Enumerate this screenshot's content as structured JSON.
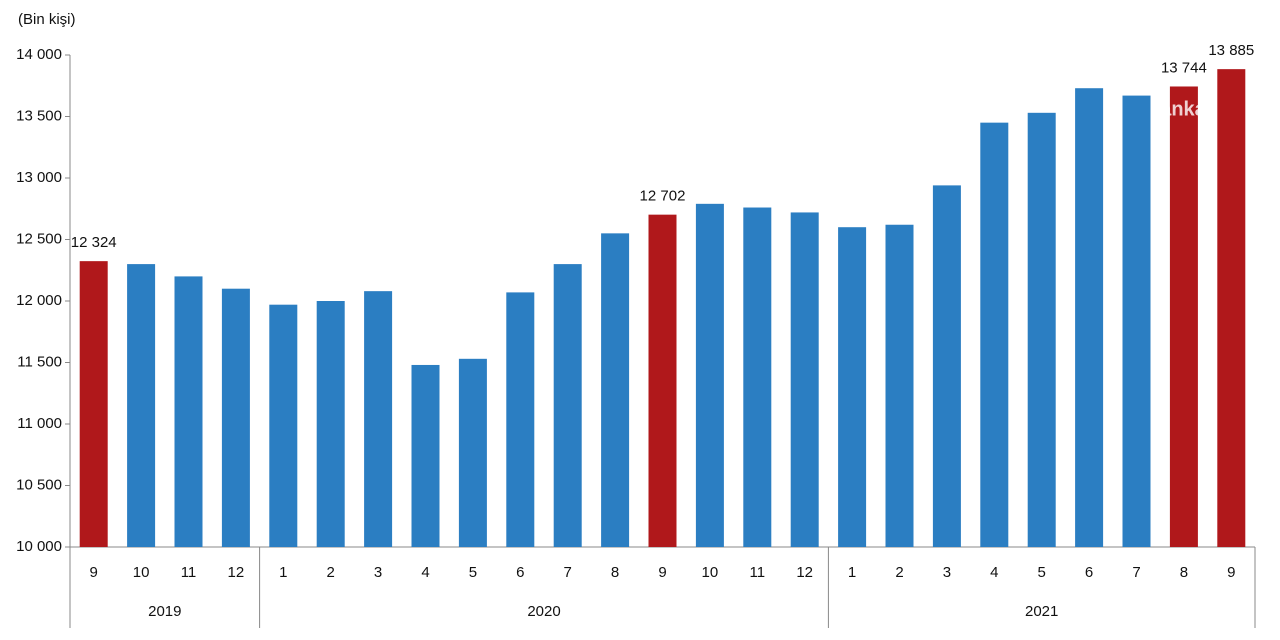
{
  "chart_data": {
    "type": "bar",
    "y_label": "(Bin kişi)",
    "watermark": "anka",
    "groups": [
      {
        "label": "2019",
        "categories": [
          "9",
          "10",
          "11",
          "12"
        ]
      },
      {
        "label": "2020",
        "categories": [
          "1",
          "2",
          "3",
          "4",
          "5",
          "6",
          "7",
          "8",
          "9",
          "10",
          "11",
          "12"
        ]
      },
      {
        "label": "2021",
        "categories": [
          "1",
          "2",
          "3",
          "4",
          "5",
          "6",
          "7",
          "8",
          "9"
        ]
      }
    ],
    "values": [
      12324,
      12300,
      12200,
      12100,
      11970,
      12000,
      12080,
      11480,
      11530,
      12070,
      12300,
      12550,
      12702,
      12790,
      12760,
      12720,
      12600,
      12620,
      12940,
      13450,
      13530,
      13730,
      13670,
      13744,
      13885
    ],
    "value_labels": [
      "12 324",
      null,
      null,
      null,
      null,
      null,
      null,
      null,
      null,
      null,
      null,
      null,
      "12 702",
      null,
      null,
      null,
      null,
      null,
      null,
      null,
      null,
      null,
      null,
      "13 744",
      "13 885"
    ],
    "colors": [
      "#b0181b",
      "#2b7ec2",
      "#2b7ec2",
      "#2b7ec2",
      "#2b7ec2",
      "#2b7ec2",
      "#2b7ec2",
      "#2b7ec2",
      "#2b7ec2",
      "#2b7ec2",
      "#2b7ec2",
      "#2b7ec2",
      "#b0181b",
      "#2b7ec2",
      "#2b7ec2",
      "#2b7ec2",
      "#2b7ec2",
      "#2b7ec2",
      "#2b7ec2",
      "#2b7ec2",
      "#2b7ec2",
      "#2b7ec2",
      "#2b7ec2",
      "#b0181b",
      "#b0181b"
    ],
    "ylim": [
      10000,
      14000
    ],
    "yticks": [
      {
        "value": 10000,
        "label": "10 000"
      },
      {
        "value": 10500,
        "label": "10 500"
      },
      {
        "value": 11000,
        "label": "11 000"
      },
      {
        "value": 11500,
        "label": "11 500"
      },
      {
        "value": 12000,
        "label": "12 000"
      },
      {
        "value": 12500,
        "label": "12 500"
      },
      {
        "value": 13000,
        "label": "13 000"
      },
      {
        "value": 13500,
        "label": "13 500"
      },
      {
        "value": 14000,
        "label": "14 000"
      }
    ],
    "grid": false
  }
}
